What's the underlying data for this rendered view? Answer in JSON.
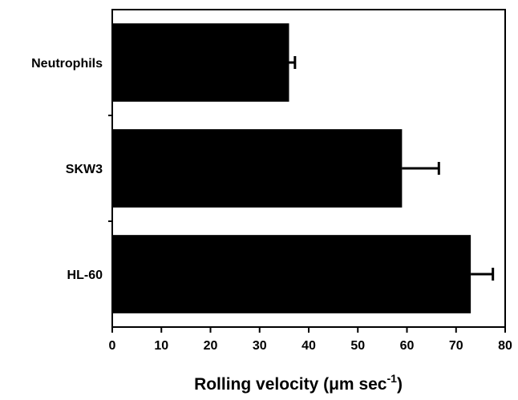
{
  "chart_data": {
    "type": "bar",
    "orientation": "horizontal",
    "categories": [
      "Neutrophils",
      "SKW3",
      "HL-60"
    ],
    "values": [
      36,
      59,
      73
    ],
    "errors": [
      1.2,
      7.5,
      4.5
    ],
    "xlabel": {
      "main": "Rolling velocity (μm sec",
      "superscript": "-1",
      "closing": ")"
    },
    "ylabel": "",
    "xlim": [
      0,
      80
    ],
    "xticks": [
      "0",
      "10",
      "20",
      "30",
      "40",
      "50",
      "60",
      "70",
      "80"
    ],
    "grid": false,
    "bar_color": "#000000"
  }
}
